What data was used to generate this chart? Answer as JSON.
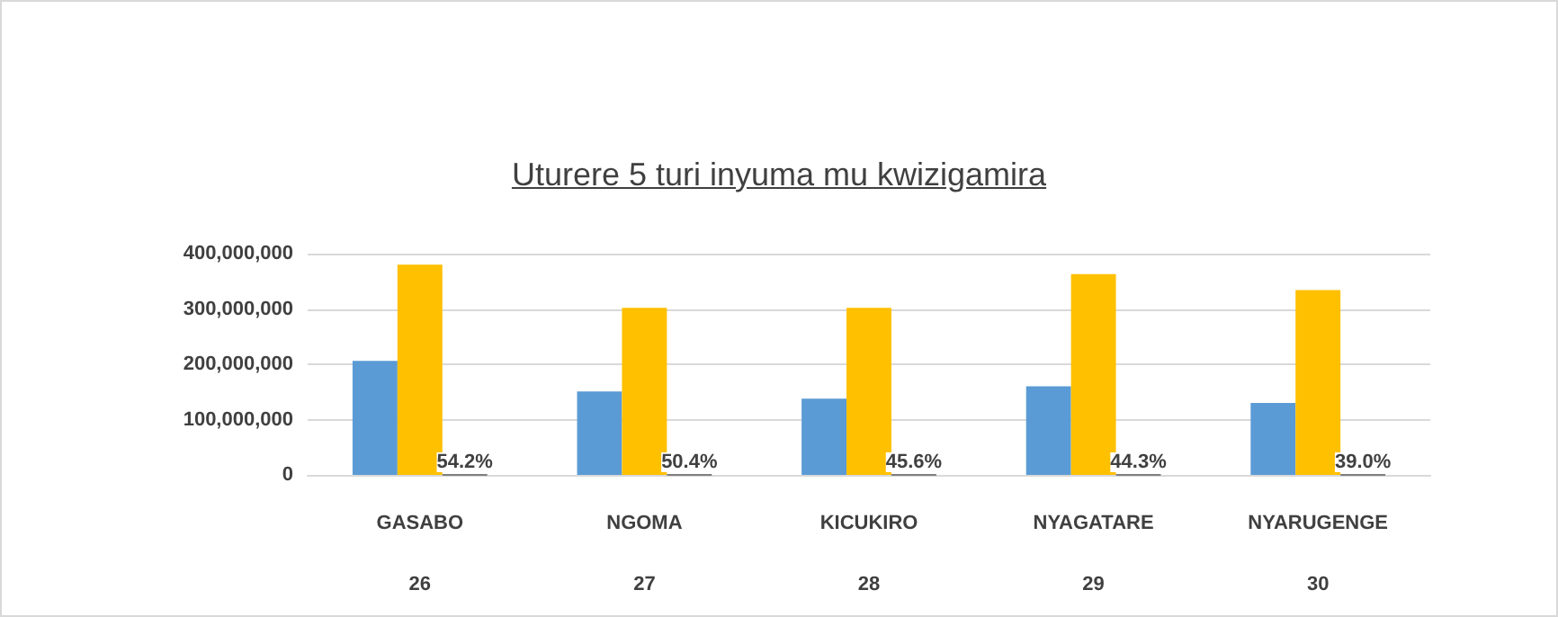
{
  "chart_data": {
    "type": "bar",
    "title": "Uturere 5 turi inyuma mu kwizigamira",
    "categories": [
      "GASABO\n26",
      "NGOMA\n27",
      "KICUKIRO\n28",
      "NYAGATARE\n29",
      "NYARUGENGE\n30"
    ],
    "series": [
      {
        "color": "#5b9bd5",
        "values": [
          206000000,
          151000000,
          138000000,
          160000000,
          130000000
        ]
      },
      {
        "color": "#ffc000",
        "values": [
          380000000,
          302000000,
          302000000,
          363000000,
          334000000
        ]
      },
      {
        "color": "#7f7f7f",
        "values": [
          0.542,
          0.504,
          0.456,
          0.443,
          0.39
        ],
        "value_labels": [
          "54.2%",
          "50.4%",
          "45.6%",
          "44.3%",
          "39.0%"
        ]
      }
    ],
    "ylim": [
      0,
      400000000
    ],
    "yticks": [
      {
        "value": 0,
        "label": "0"
      },
      {
        "value": 100000000,
        "label": "100,000,000"
      },
      {
        "value": 200000000,
        "label": "200,000,000"
      },
      {
        "value": 300000000,
        "label": "300,000,000"
      },
      {
        "value": 400000000,
        "label": "400,000,000"
      }
    ],
    "grid": "y"
  }
}
